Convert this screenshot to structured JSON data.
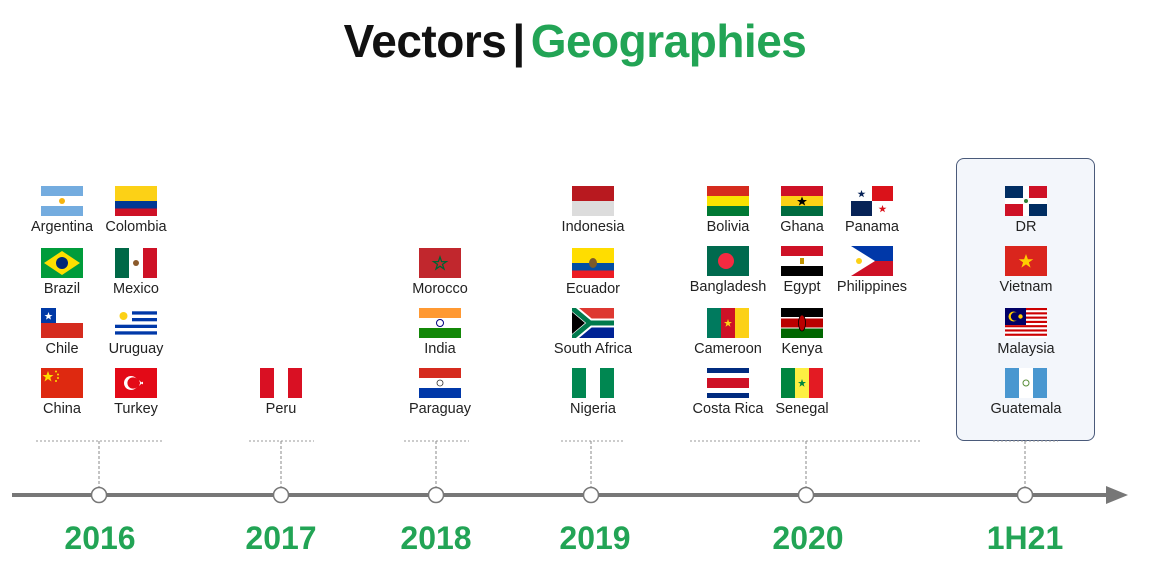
{
  "title": {
    "part1": "Vectors",
    "separator": "|",
    "part2": "Geographies"
  },
  "colors": {
    "accent": "#22a455",
    "timeline": "#777777",
    "title": "#111111"
  },
  "groups": [
    {
      "year": "2016",
      "countries": [
        "Argentina",
        "Colombia",
        "Brazil",
        "Mexico",
        "Chile",
        "Uruguay",
        "China",
        "Turkey"
      ]
    },
    {
      "year": "2017",
      "countries": [
        "Peru"
      ]
    },
    {
      "year": "2018",
      "countries": [
        "Morocco",
        "India",
        "Paraguay"
      ]
    },
    {
      "year": "2019",
      "countries": [
        "Indonesia",
        "Ecuador",
        "South Africa",
        "Nigeria"
      ]
    },
    {
      "year": "2020",
      "countries": [
        "Bolivia",
        "Ghana",
        "Panama",
        "Bangladesh",
        "Egypt",
        "Philippines",
        "Cameroon",
        "Kenya",
        "Costa Rica",
        "Senegal"
      ]
    },
    {
      "year": "1H21",
      "highlighted": true,
      "countries": [
        "DR",
        "Vietnam",
        "Malaysia",
        "Guatemala"
      ]
    }
  ]
}
